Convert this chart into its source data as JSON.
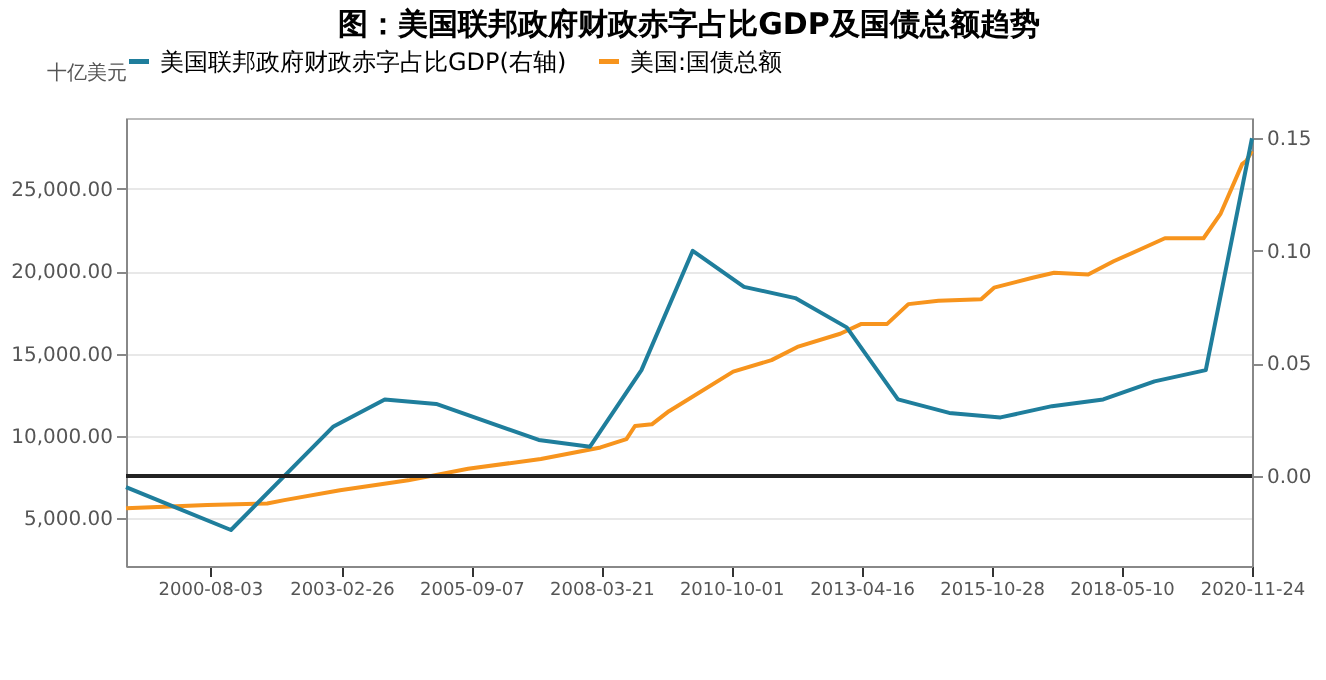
{
  "chart_data": {
    "type": "line",
    "title": "图：美国联邦政府财政赤字占比GDP及国债总额趋势",
    "ylabel": "十亿美元",
    "xlim": [
      "1998-12-15",
      "2020-11-24"
    ],
    "xticks": [
      "2000-08-03",
      "2003-02-26",
      "2005-09-07",
      "2008-03-21",
      "2010-10-01",
      "2013-04-16",
      "2015-10-28",
      "2018-05-10",
      "2020-11-24"
    ],
    "ylim": [
      2100,
      29300
    ],
    "yticks": [
      {
        "value": 5000,
        "label": "5,000.00"
      },
      {
        "value": 10000,
        "label": "10,000.00"
      },
      {
        "value": 15000,
        "label": "15,000.00"
      },
      {
        "value": 20000,
        "label": "20,000.00"
      },
      {
        "value": 25000,
        "label": "25,000.00"
      }
    ],
    "y2lim": [
      -0.04,
      0.159
    ],
    "y2ticks": [
      {
        "value": 0,
        "label": "0.00"
      },
      {
        "value": 0.05,
        "label": "0.05"
      },
      {
        "value": 0.1,
        "label": "0.10"
      },
      {
        "value": 0.15,
        "label": "0.15"
      }
    ],
    "grid": "y",
    "legend": "top",
    "marker": "none",
    "line_style": "solid",
    "ref_lines": [
      {
        "axis": "y2",
        "value": 0,
        "color": "#222222"
      }
    ],
    "series": [
      {
        "name": "美国联邦政府财政赤字占比GDP(右轴)",
        "color": "#1f7e9c",
        "axis": "y2",
        "x": [
          "1998-12-15",
          "2000-12-31",
          "2001-12-31",
          "2002-12-31",
          "2003-12-31",
          "2004-12-31",
          "2006-12-31",
          "2007-12-31",
          "2008-12-31",
          "2009-12-31",
          "2010-12-31",
          "2011-12-31",
          "2012-12-31",
          "2013-12-31",
          "2014-12-31",
          "2015-12-31",
          "2016-12-31",
          "2017-12-31",
          "2018-12-31",
          "2019-12-31",
          "2020-11-24"
        ],
        "values": [
          -0.005,
          -0.024,
          -0.001,
          0.022,
          0.034,
          0.032,
          0.016,
          0.013,
          0.047,
          0.1,
          0.084,
          0.079,
          0.066,
          0.034,
          0.028,
          0.026,
          0.031,
          0.034,
          0.042,
          0.047,
          0.15
        ]
      },
      {
        "name": "美国:国债总额",
        "color": "#f7941d",
        "axis": "y",
        "x": [
          "1998-12-15",
          "2000-07-15",
          "2001-09-15",
          "2002-01-15",
          "2003-02-15",
          "2004-06-15",
          "2005-08-15",
          "2007-01-15",
          "2008-03-15",
          "2008-09-15",
          "2008-11-15",
          "2009-03-15",
          "2009-07-15",
          "2010-10-15",
          "2011-07-15",
          "2012-01-15",
          "2012-11-15",
          "2013-04-15",
          "2013-10-15",
          "2014-03-15",
          "2014-10-15",
          "2015-08-15",
          "2015-11-15",
          "2016-08-15",
          "2017-01-15",
          "2017-09-15",
          "2018-03-15",
          "2018-09-15",
          "2019-03-15",
          "2019-12-15",
          "2020-04-15",
          "2020-09-15",
          "2020-10-15",
          "2020-11-24"
        ],
        "values": [
          5600,
          5800,
          5900,
          6100,
          6700,
          7300,
          8000,
          8600,
          9300,
          9800,
          10600,
          10700,
          11500,
          13900,
          14600,
          15400,
          16200,
          16800,
          16800,
          18000,
          18200,
          18300,
          19000,
          19600,
          19900,
          19800,
          20600,
          21300,
          22000,
          22000,
          23500,
          26500,
          26700,
          27300
        ]
      }
    ]
  }
}
